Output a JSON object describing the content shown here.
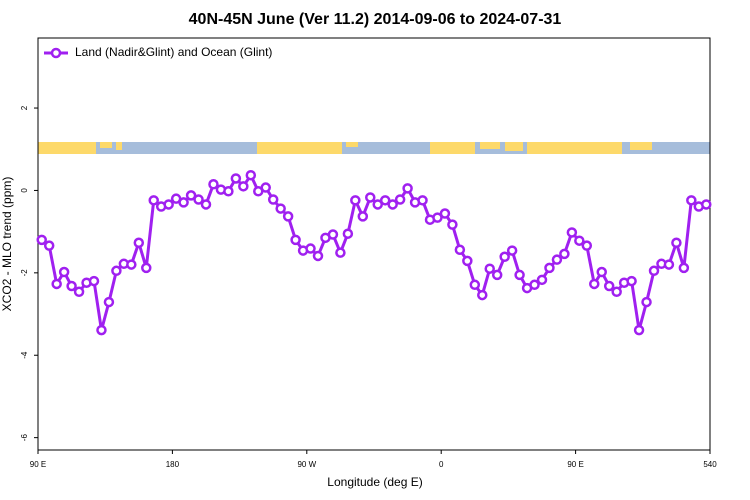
{
  "chart_data": {
    "type": "line",
    "title": "40N-45N June (Ver 11.2)   2014-09-06 to 2024-07-31",
    "xlabel": "Longitude (deg E)",
    "ylabel": "XCO2 - MLO trend (ppm)",
    "legend": "topleft",
    "x": [
      92.5,
      97.5,
      102.5,
      107.5,
      112.5,
      117.5,
      122.5,
      127.5,
      132.5,
      137.5,
      142.5,
      147.5,
      152.5,
      157.5,
      162.5,
      167.5,
      172.5,
      177.5,
      182.5,
      187.5,
      192.5,
      197.5,
      202.5,
      207.5,
      212.5,
      217.5,
      222.5,
      227.5,
      232.5,
      237.5,
      242.5,
      247.5,
      252.5,
      257.5,
      262.5,
      267.5,
      272.5,
      277.5,
      282.5,
      287.5,
      292.5,
      297.5,
      302.5,
      307.5,
      312.5,
      317.5,
      322.5,
      327.5,
      332.5,
      337.5,
      342.5,
      347.5,
      352.5,
      357.5,
      362.5,
      367.5,
      372.5,
      377.5,
      382.5,
      387.5,
      392.5,
      397.5,
      402.5,
      407.5,
      412.5,
      417.5,
      422.5,
      427.5,
      432.5,
      437.5,
      442.5,
      447.5,
      452.5,
      457.5,
      462.5,
      467.5,
      472.5,
      477.5,
      482.5,
      487.5,
      492.5,
      497.5,
      502.5,
      507.5,
      512.5,
      517.5,
      522.5,
      527.5,
      532.5,
      537.5
    ],
    "series": [
      {
        "name": "Land (Nadir&Glint) and Ocean (Glint)",
        "color": "#a020f0",
        "values": [
          -1.2,
          -1.34,
          -2.27,
          -1.98,
          -2.32,
          -2.46,
          -2.24,
          -2.2,
          -3.39,
          -2.71,
          -1.95,
          -1.78,
          -1.8,
          -1.27,
          -1.88,
          -0.24,
          -0.39,
          -0.34,
          -0.2,
          -0.29,
          -0.12,
          -0.22,
          -0.34,
          0.15,
          0.02,
          -0.02,
          0.29,
          0.1,
          0.37,
          -0.02,
          0.07,
          -0.22,
          -0.44,
          -0.63,
          -1.2,
          -1.46,
          -1.41,
          -1.59,
          -1.15,
          -1.07,
          -1.51,
          -1.05,
          -0.24,
          -0.63,
          -0.17,
          -0.34,
          -0.24,
          -0.34,
          -0.22,
          0.05,
          -0.29,
          -0.24,
          -0.71,
          -0.66,
          -0.56,
          -0.83,
          -1.44,
          -1.71,
          -2.29,
          -2.54,
          -1.9,
          -2.05,
          -1.61,
          -1.46,
          -2.05,
          -2.37,
          -2.29,
          -2.17,
          -1.88,
          -1.68,
          -1.54,
          -1.02,
          -1.22,
          -1.34,
          -2.27,
          -1.98,
          -2.32,
          -2.46,
          -2.24,
          -2.2,
          -3.39,
          -2.71,
          -1.95,
          -1.78,
          -1.8,
          -1.27,
          -1.88,
          -0.24,
          -0.39,
          -0.34
        ]
      }
    ],
    "xlim": [
      90,
      540
    ],
    "xticks": [
      {
        "value": 90,
        "label": "90 E"
      },
      180,
      {
        "value": 270,
        "label": "90 W"
      },
      {
        "value": 360,
        "label": "0"
      },
      {
        "value": 450,
        "label": "90 E"
      },
      540
    ],
    "ylim": [
      -6.3,
      3.7
    ],
    "yticks": [
      -6,
      -4,
      -2,
      0,
      2
    ],
    "grid": false
  }
}
